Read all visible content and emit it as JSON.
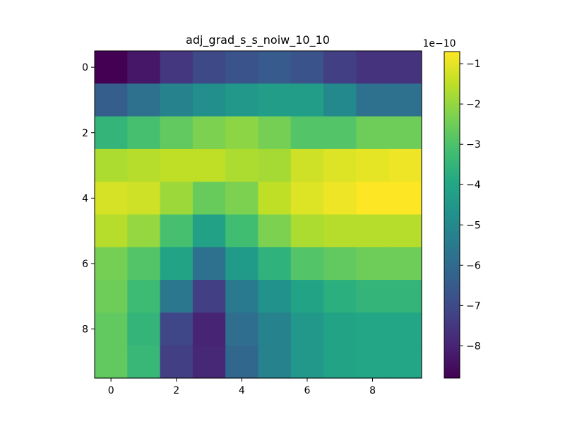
{
  "chart_data": {
    "type": "heatmap",
    "title": "adj_grad_s_s_noiw_10_10",
    "xlabel": "",
    "ylabel": "",
    "x_ticks": [
      0,
      2,
      4,
      6,
      8
    ],
    "y_ticks": [
      0,
      2,
      4,
      6,
      8
    ],
    "colormap": "viridis",
    "color_range": [
      -8.8,
      -0.7
    ],
    "colorbar_ticks": [
      -1,
      -2,
      -3,
      -4,
      -5,
      -6,
      -7,
      -8
    ],
    "colorbar_ticks_display": [
      "−1",
      "−2",
      "−3",
      "−4",
      "−5",
      "−6",
      "−7",
      "−8"
    ],
    "colorbar_scale_label": "1e−10",
    "values": [
      [
        -8.8,
        -8.3,
        -7.5,
        -7.0,
        -6.7,
        -6.5,
        -6.7,
        -7.3,
        -7.6,
        -7.6
      ],
      [
        -6.4,
        -5.8,
        -5.2,
        -4.8,
        -4.5,
        -4.3,
        -4.3,
        -5.0,
        -5.8,
        -5.8
      ],
      [
        -3.5,
        -3.1,
        -2.7,
        -2.3,
        -2.1,
        -2.4,
        -2.9,
        -2.9,
        -2.5,
        -2.5
      ],
      [
        -1.7,
        -1.6,
        -1.5,
        -1.5,
        -1.7,
        -1.8,
        -1.3,
        -1.1,
        -1.0,
        -0.9
      ],
      [
        -1.2,
        -1.3,
        -1.9,
        -2.6,
        -2.3,
        -1.5,
        -1.1,
        -0.9,
        -0.7,
        -0.7
      ],
      [
        -1.6,
        -2.0,
        -3.1,
        -4.2,
        -3.2,
        -2.3,
        -1.7,
        -1.6,
        -1.6,
        -1.6
      ],
      [
        -2.4,
        -2.9,
        -4.1,
        -5.8,
        -4.4,
        -3.6,
        -2.9,
        -2.7,
        -2.5,
        -2.5
      ],
      [
        -2.5,
        -3.3,
        -5.6,
        -7.3,
        -5.5,
        -4.7,
        -4.1,
        -3.7,
        -3.5,
        -3.5
      ],
      [
        -2.7,
        -3.5,
        -7.1,
        -8.0,
        -5.9,
        -5.2,
        -4.5,
        -4.1,
        -4.0,
        -4.0
      ],
      [
        -2.7,
        -3.4,
        -7.3,
        -7.9,
        -6.1,
        -5.2,
        -4.5,
        -4.1,
        -4.0,
        -4.0
      ]
    ]
  }
}
